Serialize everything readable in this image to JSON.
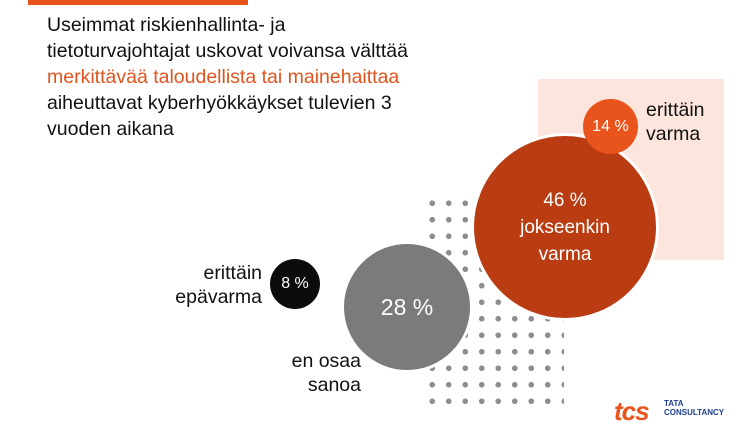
{
  "headline": {
    "line1": "Useimmat riskienhallinta- ja",
    "line2": "tietoturvajohtajat uskovat voivansa välttää",
    "line3_highlight": "merkittävää taloudellista tai mainehaittaa",
    "line4": "aiheuttavat kyberhyökkäykset tulevien 3",
    "line5": "vuoden aikana"
  },
  "chart_data": {
    "type": "bubble",
    "title": "Useimmat riskienhallinta- ja tietoturvajohtajat uskovat voivansa välttää merkittävää taloudellista tai mainehaittaa aiheuttavat kyberhyökkäykset tulevien 3 vuoden aikana",
    "series": [
      {
        "category": "erittäin epävarma",
        "value": 8,
        "value_label": "8 %",
        "color": "#0c0c0c"
      },
      {
        "category": "en osaa sanoa",
        "value": 28,
        "value_label": "28 %",
        "color": "#7b7b7b"
      },
      {
        "category": "jokseenkin varma",
        "value": 46,
        "value_label": "46 %",
        "color": "#b93c12"
      },
      {
        "category": "erittäin varma",
        "value": 14,
        "value_label": "14 %",
        "color": "#e9531c"
      }
    ]
  },
  "labels": {
    "b8": {
      "line1": "erittäin",
      "line2": "epävarma",
      "value": "8 %"
    },
    "b28": {
      "line1": "en osaa",
      "line2": "sanoa",
      "value": "28 %"
    },
    "b46": {
      "value": "46 %",
      "line1": "jokseenkin",
      "line2": "varma"
    },
    "b14": {
      "line1": "erittäin",
      "line2": "varma",
      "value": "14 %"
    }
  },
  "logo": {
    "mark": "tcs",
    "text_line1": "TATA",
    "text_line2": "CONSULTANCY"
  },
  "colors": {
    "accent": "#e9531c",
    "dark_accent": "#b93c12",
    "panel": "#fce5dc",
    "grey": "#7b7b7b",
    "black": "#0c0c0c"
  }
}
